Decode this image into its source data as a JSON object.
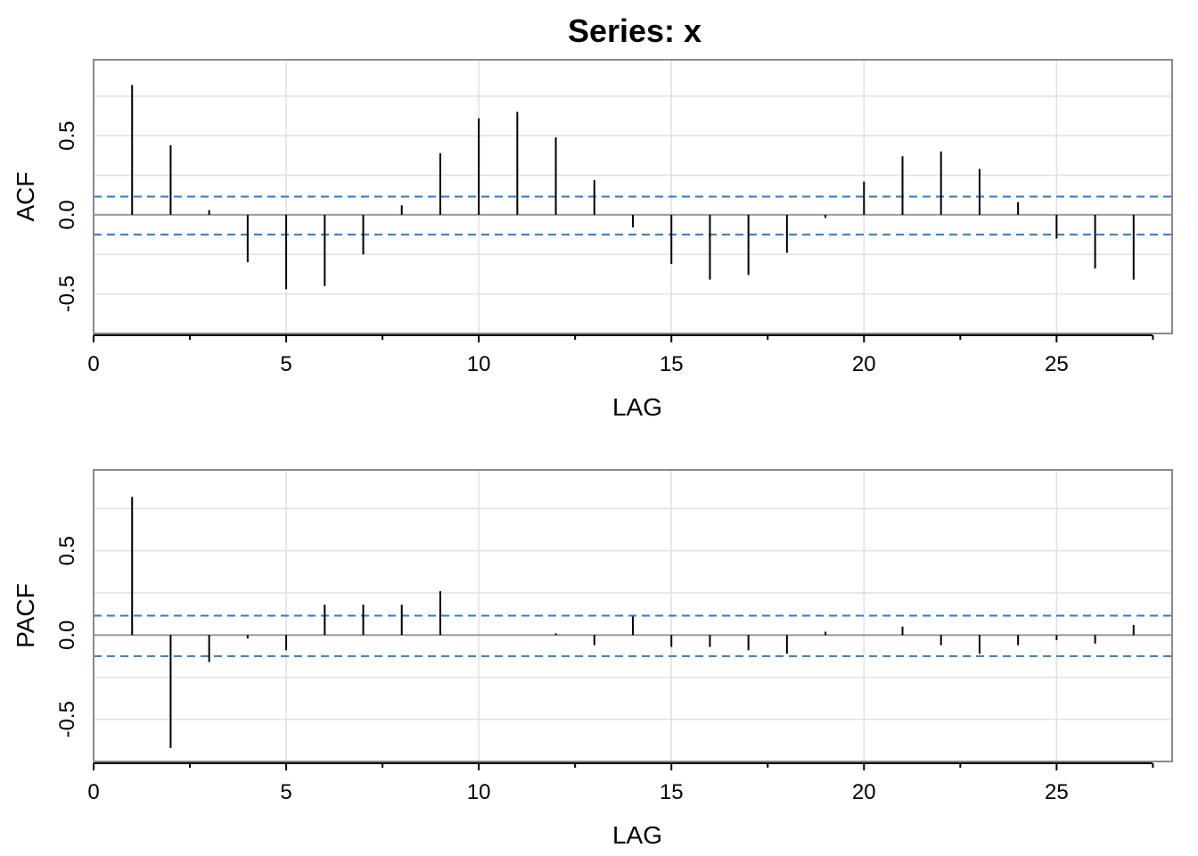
{
  "title": "Series:  x",
  "colors": {
    "stem": "#000000",
    "confidence": "#2e7bc4",
    "grid": "#e2e2e2",
    "frame": "#8a8a8a"
  },
  "chart_data": [
    {
      "type": "bar",
      "name": "ACF",
      "xlabel": "LAG",
      "ylabel": "ACF",
      "xlim": [
        0,
        28
      ],
      "ylim": [
        -0.75,
        0.98
      ],
      "xticks": [
        0,
        5,
        10,
        15,
        20,
        25
      ],
      "xtick_labels": [
        "0",
        "5",
        "10",
        "15",
        "20",
        "25"
      ],
      "yticks": [
        -0.5,
        0.0,
        0.5
      ],
      "ytick_labels": [
        "-0.5",
        "0.0",
        "0.5"
      ],
      "confidence_bounds": [
        0.115,
        -0.125
      ],
      "grid": true,
      "x": [
        1,
        2,
        3,
        4,
        5,
        6,
        7,
        8,
        9,
        10,
        11,
        12,
        13,
        14,
        15,
        16,
        17,
        18,
        19,
        20,
        21,
        22,
        23,
        24,
        25,
        26,
        27
      ],
      "values": [
        0.82,
        0.44,
        0.03,
        -0.3,
        -0.47,
        -0.45,
        -0.25,
        0.06,
        0.39,
        0.61,
        0.65,
        0.49,
        0.22,
        -0.08,
        -0.31,
        -0.41,
        -0.38,
        -0.24,
        -0.02,
        0.21,
        0.37,
        0.4,
        0.29,
        0.08,
        -0.15,
        -0.34,
        -0.41
      ]
    },
    {
      "type": "bar",
      "name": "PACF",
      "xlabel": "LAG",
      "ylabel": "PACF",
      "xlim": [
        0,
        28
      ],
      "ylim": [
        -0.75,
        0.98
      ],
      "xticks": [
        0,
        5,
        10,
        15,
        20,
        25
      ],
      "xtick_labels": [
        "0",
        "5",
        "10",
        "15",
        "20",
        "25"
      ],
      "yticks": [
        -0.5,
        0.0,
        0.5
      ],
      "ytick_labels": [
        "-0.5",
        "0.0",
        "0.5"
      ],
      "confidence_bounds": [
        0.115,
        -0.125
      ],
      "grid": true,
      "x": [
        1,
        2,
        3,
        4,
        5,
        6,
        7,
        8,
        9,
        10,
        11,
        12,
        13,
        14,
        15,
        16,
        17,
        18,
        19,
        20,
        21,
        22,
        23,
        24,
        25,
        26,
        27
      ],
      "values": [
        0.82,
        -0.67,
        -0.16,
        -0.02,
        -0.09,
        0.18,
        0.18,
        0.18,
        0.26,
        0.0,
        0.0,
        0.01,
        -0.06,
        0.11,
        -0.07,
        -0.07,
        -0.09,
        -0.11,
        0.02,
        0.0,
        0.05,
        -0.06,
        -0.11,
        -0.06,
        -0.03,
        -0.05,
        0.06
      ]
    }
  ]
}
